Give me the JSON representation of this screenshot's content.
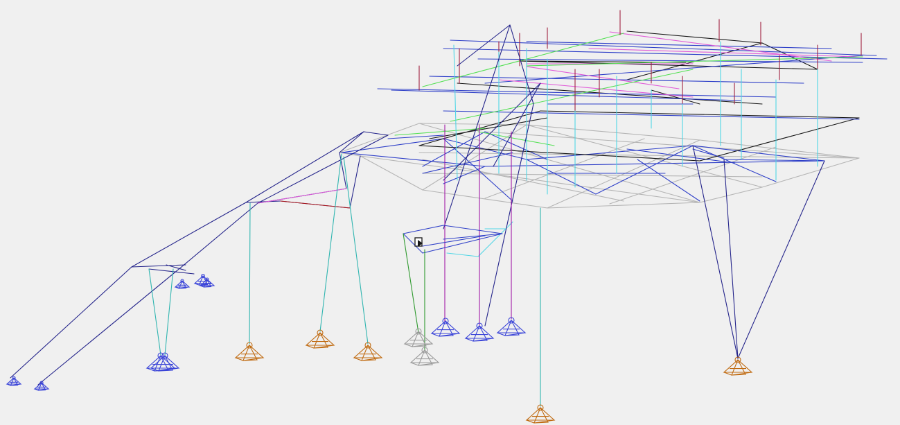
{
  "viewport": {
    "background": "#f0f0f0",
    "mode": "3d-wireframe-structural-model"
  },
  "colors": {
    "blue": "#2e3fc8",
    "navy": "#23238a",
    "cyan": "#4fd6e6",
    "teal": "#2fb5b0",
    "magenta": "#e05ad8",
    "purple": "#a21ca8",
    "green": "#55e055",
    "darkgreen": "#2f9a2f",
    "gray": "#b4b4b4",
    "black": "#161616",
    "darkred": "#a02040",
    "red": "#b01818",
    "orange": "#c06a10",
    "support_blue": "#3a44d8",
    "support_gray": "#9a9a9a"
  },
  "icons": {
    "cursor": "move-cursor-icon",
    "support": "pin-support-icon"
  }
}
